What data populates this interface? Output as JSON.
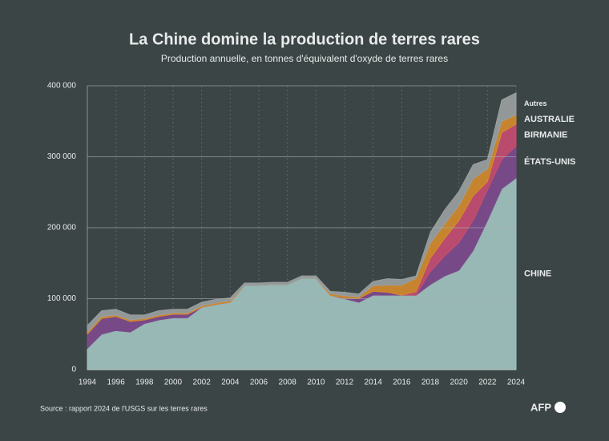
{
  "chart_data": {
    "type": "stacked_area",
    "title": "La Chine domine la production de terres rares",
    "subtitle": "Production annuelle, en tonnes d'équivalent d'oxyde de terres rares",
    "source": "Source : rapport 2024 de l'USGS sur les terres rares",
    "logo": "AFP",
    "x": [
      1994,
      1995,
      1996,
      1997,
      1998,
      1999,
      2000,
      2001,
      2002,
      2003,
      2004,
      2005,
      2006,
      2007,
      2008,
      2009,
      2010,
      2011,
      2012,
      2013,
      2014,
      2015,
      2016,
      2017,
      2018,
      2019,
      2020,
      2021,
      2022,
      2023,
      2024
    ],
    "xlim": [
      1994,
      2024
    ],
    "xticks": [
      1994,
      1996,
      1998,
      2000,
      2002,
      2004,
      2006,
      2008,
      2010,
      2012,
      2014,
      2016,
      2018,
      2020,
      2022,
      2024
    ],
    "ylim": [
      0,
      400000
    ],
    "yticks": [
      0,
      {
        "value": 100000,
        "label": "100 000"
      },
      {
        "value": 200000,
        "label": "200 000"
      },
      {
        "value": 300000,
        "label": "300 000"
      },
      {
        "value": 400000,
        "label": "400 000"
      }
    ],
    "grid": true,
    "series": [
      {
        "name": "CHINE",
        "color": "#9fc2be",
        "values": [
          30000,
          50000,
          55000,
          53000,
          65000,
          70000,
          73000,
          73000,
          88000,
          92000,
          95000,
          119000,
          119000,
          120000,
          120000,
          129000,
          129000,
          105000,
          100000,
          95000,
          105000,
          105000,
          105000,
          105000,
          120000,
          132000,
          140000,
          168000,
          210000,
          255000,
          270000
        ]
      },
      {
        "name": "ÉTATS-UNIS",
        "color": "#7d4a8c",
        "values": [
          20000,
          22000,
          20000,
          15000,
          5000,
          5000,
          5000,
          5000,
          0,
          0,
          0,
          0,
          0,
          0,
          0,
          0,
          0,
          0,
          800,
          5500,
          5400,
          4100,
          0,
          0,
          18000,
          28000,
          39000,
          42000,
          43000,
          41000,
          45000
        ]
      },
      {
        "name": "BIRMANIE",
        "color": "#c44d72",
        "values": [
          0,
          0,
          0,
          0,
          0,
          0,
          0,
          0,
          0,
          0,
          0,
          0,
          0,
          0,
          0,
          0,
          0,
          0,
          0,
          0,
          0,
          0,
          0,
          5000,
          19000,
          25000,
          31000,
          35000,
          12000,
          38000,
          31000
        ]
      },
      {
        "name": "AUSTRALIE",
        "color": "#d48a2d",
        "values": [
          3000,
          3000,
          2000,
          2000,
          2000,
          2000,
          2000,
          2000,
          2000,
          2000,
          2000,
          0,
          0,
          0,
          0,
          0,
          0,
          2200,
          3200,
          2000,
          8000,
          10000,
          14000,
          19000,
          21000,
          20000,
          21000,
          24000,
          18000,
          16000,
          13000
        ]
      },
      {
        "name": "Autres",
        "color": "#9a9fa0",
        "values": [
          9000,
          8000,
          8000,
          7000,
          5000,
          6000,
          5000,
          5000,
          5000,
          5000,
          4000,
          3000,
          3000,
          3000,
          3000,
          3000,
          3000,
          3000,
          5000,
          4000,
          6000,
          9000,
          8000,
          3000,
          15000,
          20000,
          20000,
          20000,
          13000,
          30000,
          31000
        ]
      }
    ]
  }
}
